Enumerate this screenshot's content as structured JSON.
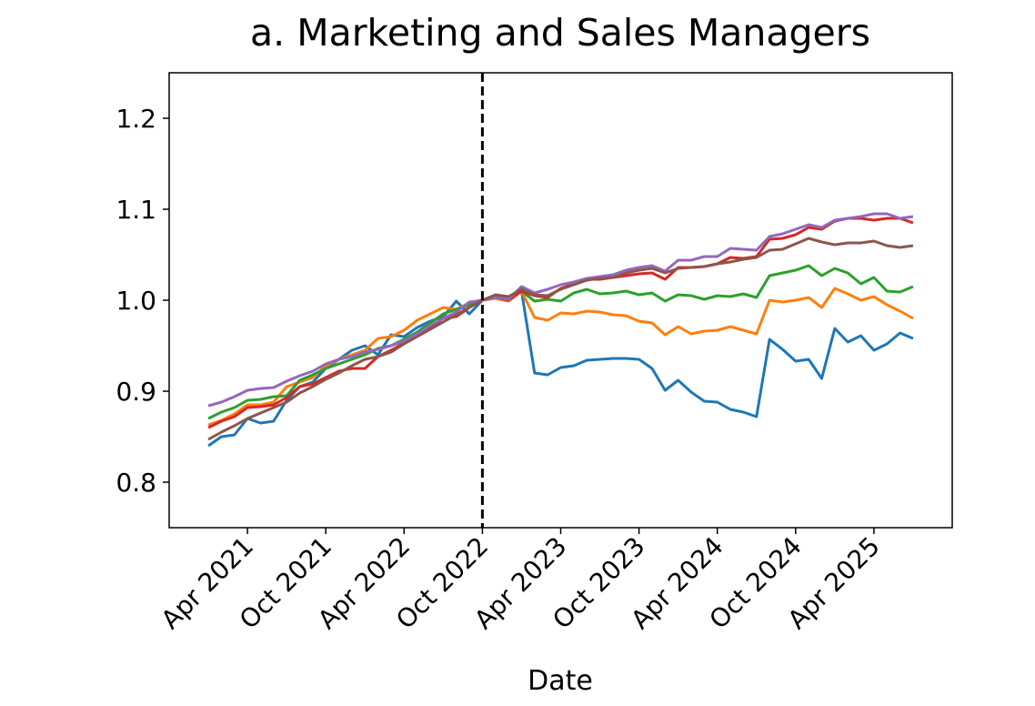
{
  "chart_data": {
    "type": "line",
    "title": "a. Marketing and Sales Managers",
    "xlabel": "Date",
    "x": [
      "2021-01",
      "2021-02",
      "2021-03",
      "2021-04",
      "2021-05",
      "2021-06",
      "2021-07",
      "2021-08",
      "2021-09",
      "2021-10",
      "2021-11",
      "2021-12",
      "2022-01",
      "2022-02",
      "2022-03",
      "2022-04",
      "2022-05",
      "2022-06",
      "2022-07",
      "2022-08",
      "2022-09",
      "2022-10",
      "2022-11",
      "2022-12",
      "2023-01",
      "2023-02",
      "2023-03",
      "2023-04",
      "2023-05",
      "2023-06",
      "2023-07",
      "2023-08",
      "2023-09",
      "2023-10",
      "2023-11",
      "2023-12",
      "2024-01",
      "2024-02",
      "2024-03",
      "2024-04",
      "2024-05",
      "2024-06",
      "2024-07",
      "2024-08",
      "2024-09",
      "2024-10",
      "2024-11",
      "2024-12",
      "2025-01",
      "2025-02",
      "2025-03",
      "2025-04",
      "2025-05",
      "2025-06",
      "2025-07"
    ],
    "series": [
      {
        "color": "#1f77b4",
        "values": [
          0.84,
          0.85,
          0.852,
          0.87,
          0.865,
          0.867,
          0.89,
          0.905,
          0.91,
          0.925,
          0.935,
          0.945,
          0.95,
          0.94,
          0.962,
          0.96,
          0.97,
          0.977,
          0.982,
          0.999,
          0.985,
          1.0,
          1.005,
          1.003,
          1.01,
          0.92,
          0.918,
          0.926,
          0.928,
          0.934,
          0.935,
          0.936,
          0.936,
          0.935,
          0.925,
          0.901,
          0.912,
          0.899,
          0.889,
          0.888,
          0.88,
          0.877,
          0.872,
          0.957,
          0.946,
          0.933,
          0.935,
          0.914,
          0.969,
          0.954,
          0.961,
          0.945,
          0.952,
          0.964,
          0.958
        ]
      },
      {
        "color": "#ff7f0e",
        "values": [
          0.863,
          0.868,
          0.875,
          0.885,
          0.885,
          0.888,
          0.905,
          0.91,
          0.915,
          0.928,
          0.935,
          0.94,
          0.945,
          0.958,
          0.96,
          0.967,
          0.978,
          0.985,
          0.992,
          0.99,
          0.997,
          1.0,
          1.002,
          0.999,
          1.01,
          0.981,
          0.978,
          0.986,
          0.985,
          0.988,
          0.987,
          0.984,
          0.983,
          0.977,
          0.975,
          0.962,
          0.971,
          0.963,
          0.966,
          0.967,
          0.971,
          0.967,
          0.963,
          1.0,
          0.998,
          1.0,
          1.003,
          0.992,
          1.013,
          1.007,
          1.0,
          1.004,
          0.995,
          0.988,
          0.98
        ]
      },
      {
        "color": "#2ca02c",
        "values": [
          0.87,
          0.877,
          0.882,
          0.89,
          0.891,
          0.894,
          0.895,
          0.912,
          0.918,
          0.925,
          0.93,
          0.935,
          0.94,
          0.947,
          0.95,
          0.957,
          0.965,
          0.975,
          0.985,
          0.99,
          0.995,
          1.0,
          1.005,
          1.003,
          1.01,
          0.999,
          1.001,
          0.999,
          1.008,
          1.012,
          1.007,
          1.008,
          1.01,
          1.006,
          1.008,
          0.999,
          1.006,
          1.005,
          1.001,
          1.005,
          1.004,
          1.007,
          1.003,
          1.027,
          1.03,
          1.033,
          1.038,
          1.027,
          1.035,
          1.03,
          1.018,
          1.025,
          1.01,
          1.009,
          1.015
        ]
      },
      {
        "color": "#d62728",
        "values": [
          0.86,
          0.867,
          0.872,
          0.882,
          0.883,
          0.885,
          0.893,
          0.905,
          0.908,
          0.915,
          0.922,
          0.925,
          0.925,
          0.938,
          0.945,
          0.953,
          0.962,
          0.97,
          0.98,
          0.982,
          0.992,
          1.0,
          1.003,
          1.0,
          1.01,
          1.005,
          1.003,
          1.013,
          1.018,
          1.023,
          1.023,
          1.025,
          1.027,
          1.029,
          1.03,
          1.023,
          1.036,
          1.036,
          1.037,
          1.04,
          1.047,
          1.046,
          1.048,
          1.067,
          1.068,
          1.072,
          1.08,
          1.078,
          1.087,
          1.09,
          1.09,
          1.088,
          1.09,
          1.09,
          1.085
        ]
      },
      {
        "color": "#9467bd",
        "values": [
          0.884,
          0.888,
          0.894,
          0.901,
          0.903,
          0.904,
          0.911,
          0.917,
          0.922,
          0.93,
          0.935,
          0.938,
          0.943,
          0.946,
          0.95,
          0.955,
          0.963,
          0.972,
          0.98,
          0.987,
          0.998,
          1.0,
          1.003,
          1.001,
          1.015,
          1.008,
          1.012,
          1.017,
          1.02,
          1.024,
          1.026,
          1.028,
          1.033,
          1.036,
          1.038,
          1.032,
          1.044,
          1.044,
          1.048,
          1.048,
          1.057,
          1.056,
          1.055,
          1.07,
          1.073,
          1.078,
          1.083,
          1.08,
          1.088,
          1.09,
          1.092,
          1.095,
          1.095,
          1.09,
          1.092
        ]
      },
      {
        "color": "#8c564b",
        "values": [
          0.847,
          0.855,
          0.862,
          0.87,
          0.876,
          0.882,
          0.888,
          0.898,
          0.905,
          0.913,
          0.92,
          0.928,
          0.935,
          0.938,
          0.943,
          0.952,
          0.96,
          0.968,
          0.976,
          0.984,
          0.992,
          1.0,
          1.006,
          1.004,
          1.012,
          1.006,
          1.005,
          1.012,
          1.017,
          1.022,
          1.024,
          1.025,
          1.03,
          1.033,
          1.035,
          1.03,
          1.035,
          1.036,
          1.037,
          1.04,
          1.042,
          1.045,
          1.047,
          1.055,
          1.056,
          1.062,
          1.068,
          1.064,
          1.061,
          1.063,
          1.063,
          1.065,
          1.06,
          1.058,
          1.06
        ]
      }
    ],
    "xlim": [
      "2020-10",
      "2025-10"
    ],
    "xticks": [
      {
        "value": "2021-04",
        "label": "Apr 2021"
      },
      {
        "value": "2021-10",
        "label": "Oct 2021"
      },
      {
        "value": "2022-04",
        "label": "Apr 2022"
      },
      {
        "value": "2022-10",
        "label": "Oct 2022"
      },
      {
        "value": "2023-04",
        "label": "Apr 2023"
      },
      {
        "value": "2023-10",
        "label": "Oct 2023"
      },
      {
        "value": "2024-04",
        "label": "Apr 2024"
      },
      {
        "value": "2024-10",
        "label": "Oct 2024"
      },
      {
        "value": "2025-04",
        "label": "Apr 2025"
      }
    ],
    "ylim": [
      0.75,
      1.25
    ],
    "yticks": [
      0.8,
      0.9,
      {
        "value": 1,
        "label": "1.0"
      },
      1.1,
      1.2
    ],
    "vline": {
      "x": "2022-10",
      "color": "#000000",
      "style": "dashed"
    },
    "grid": false
  }
}
